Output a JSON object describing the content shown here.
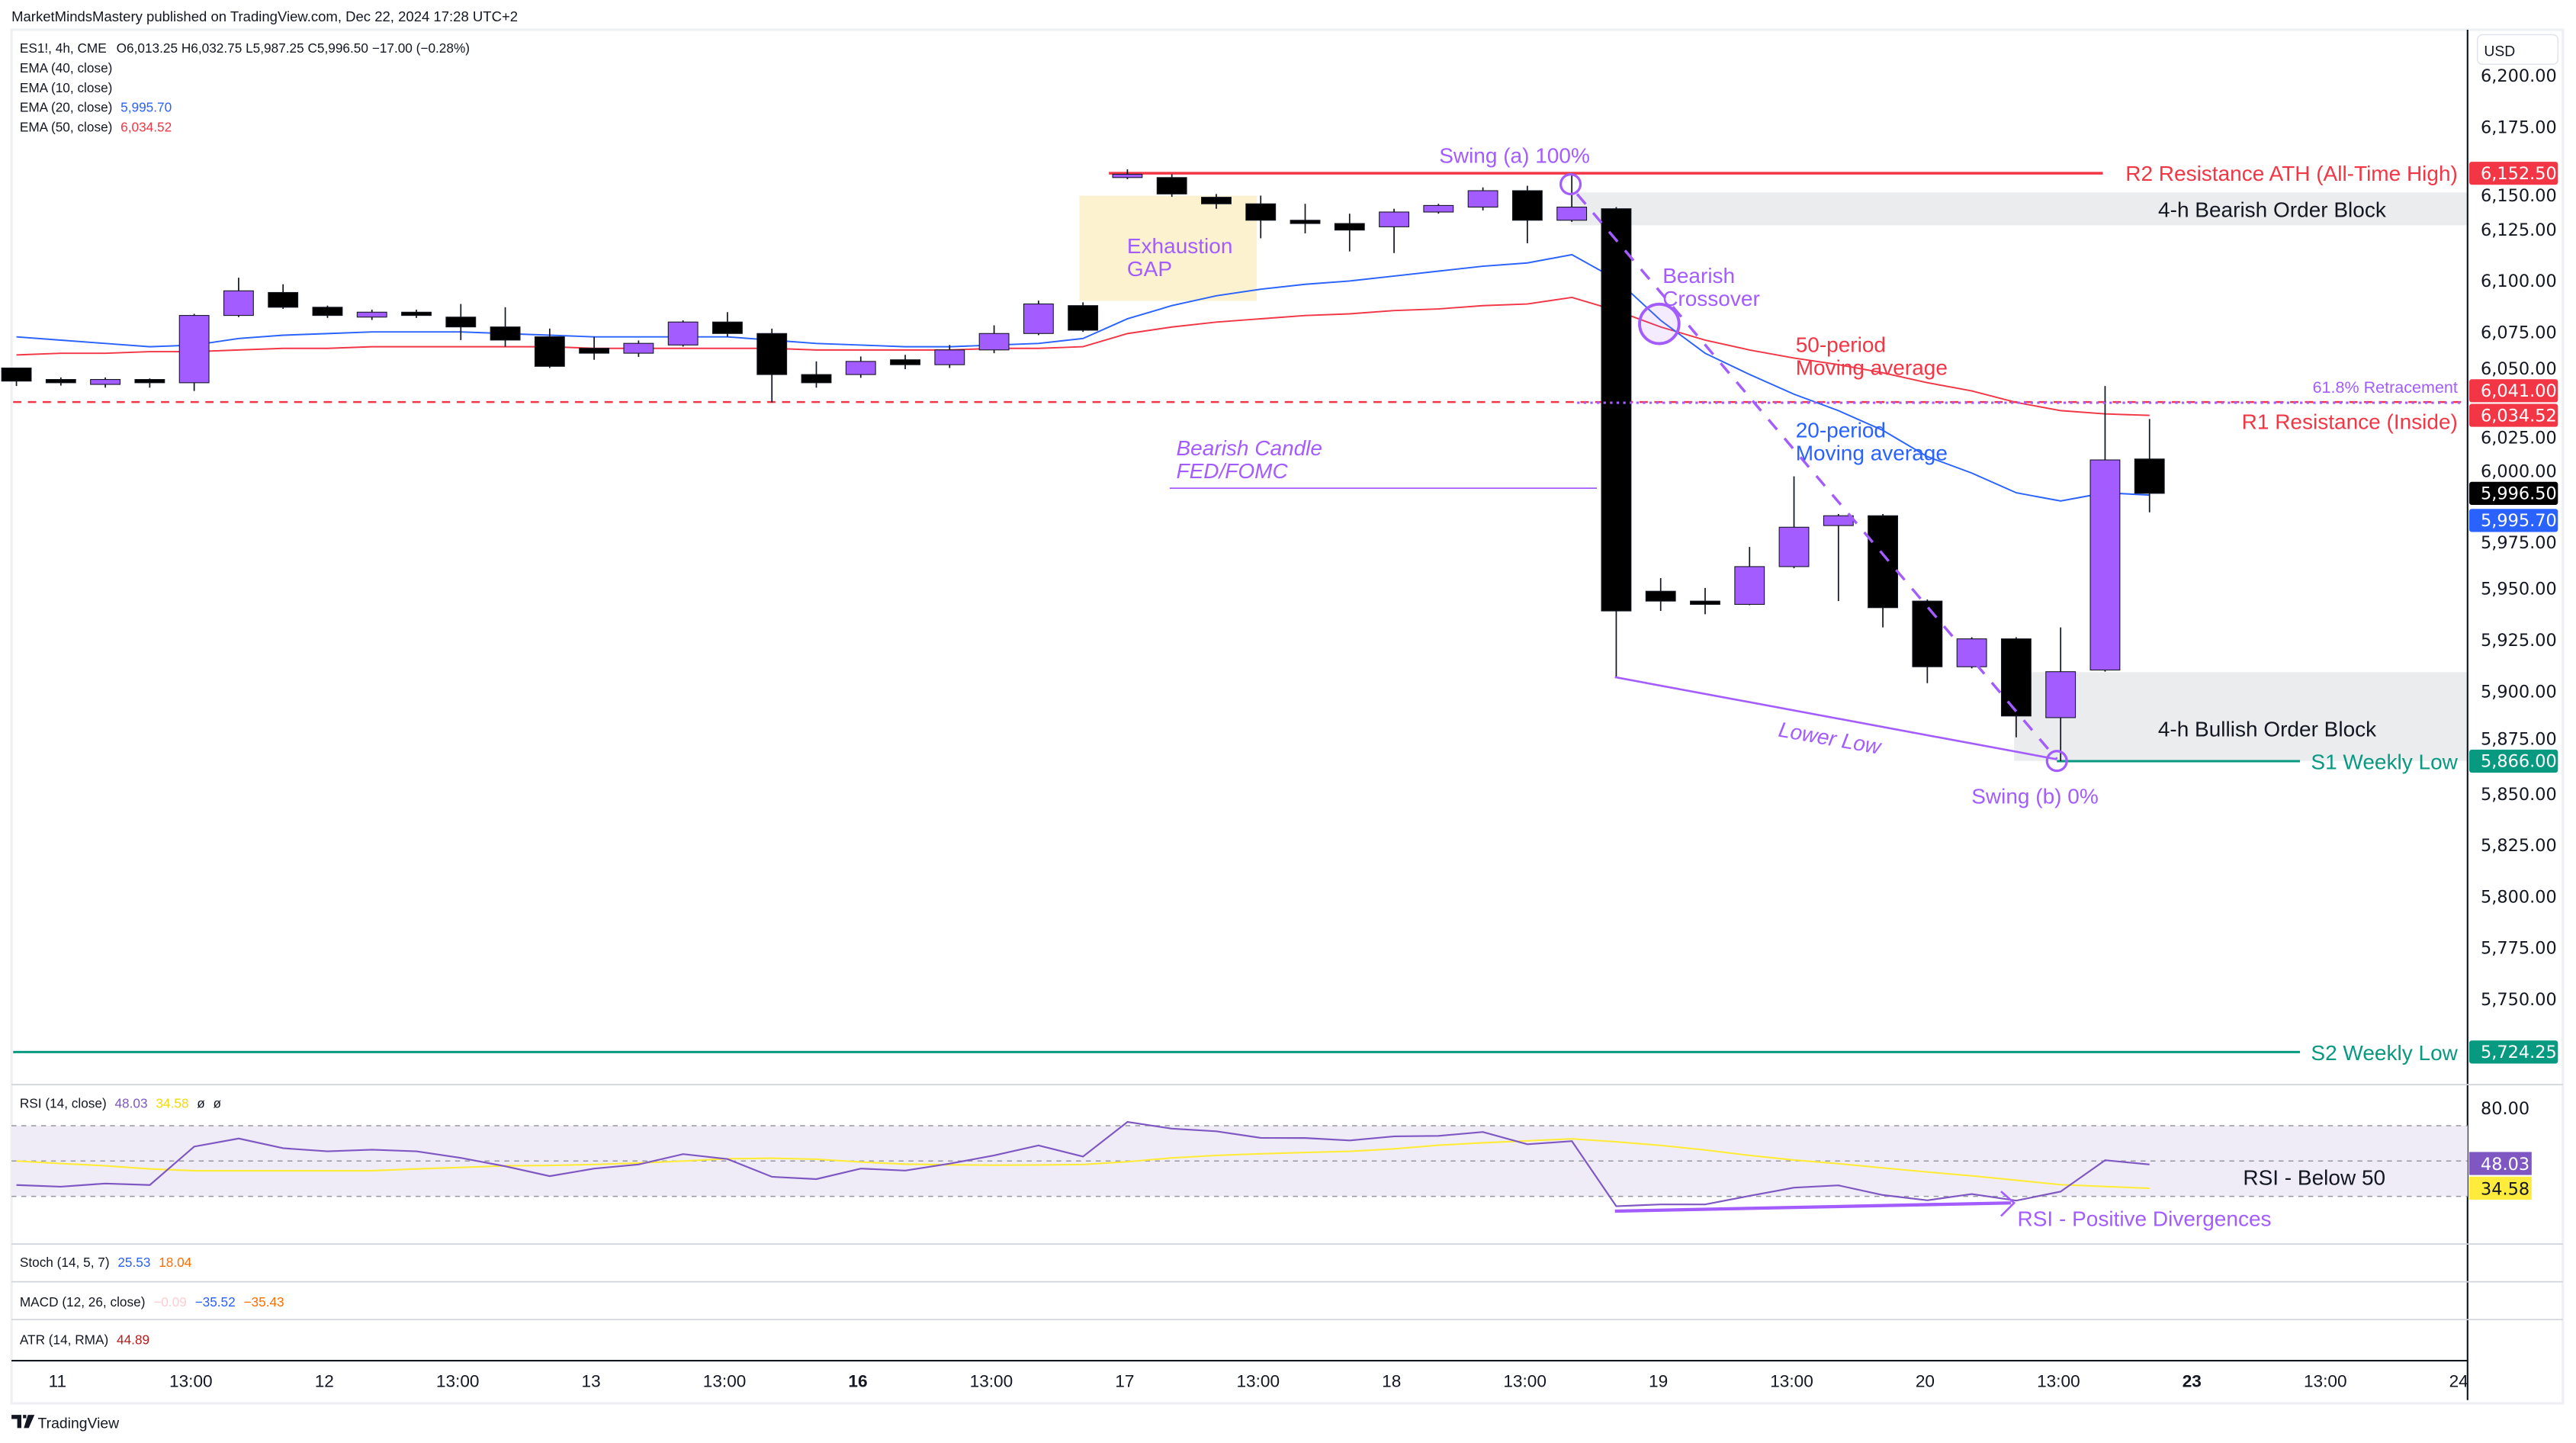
{
  "header": {
    "published": "MarketMindsMastery published on TradingView.com, Dec 22, 2024 17:28 UTC+2",
    "symbol": "ES1!, 4h, CME",
    "ohlc": "O6,013.25  H6,032.75  L5,987.25  C5,996.50  −17.00 (−0.28%)",
    "ema40": "EMA (40, close)",
    "ema10": "EMA (10, close)",
    "ema20": "EMA (20, close)",
    "ema20_value": "5,995.70",
    "ema50": "EMA (50, close)",
    "ema50_value": "6,034.52"
  },
  "colors": {
    "up": "#a35cff",
    "down": "#000000",
    "ema20": "#2962ff",
    "ema50": "#f23645",
    "rsi": "#7e57c2",
    "rsi_ma": "#ffeb3b",
    "support": "#089981",
    "annotation": "#a35cff"
  },
  "price_axis": {
    "currency": "USD",
    "ticks": [
      "6,200.00",
      "6,175.00",
      "6,150.00",
      "6,125.00",
      "6,100.00",
      "6,075.00",
      "6,050.00",
      "6,025.00",
      "6,000.00",
      "5,975.00",
      "5,950.00",
      "5,925.00",
      "5,900.00",
      "5,875.00",
      "5,850.00",
      "5,825.00",
      "5,800.00",
      "5,775.00",
      "5,750.00"
    ],
    "tick_values": [
      6200,
      6175,
      6150,
      6125,
      6100,
      6075,
      6050,
      6025,
      6000,
      5975,
      5950,
      5925,
      5900,
      5875,
      5850,
      5825,
      5800,
      5775,
      5750
    ],
    "badges": [
      {
        "label": "6,152.50",
        "value": 6152.5,
        "color": "#f23645"
      },
      {
        "label": "6,041.00",
        "value": 6046.5,
        "color": "#f23645"
      },
      {
        "label": "6,034.52",
        "value": 6034.52,
        "color": "#f23645"
      },
      {
        "label": "5,996.50",
        "value": 5996.5,
        "color": "#000000"
      },
      {
        "label": "5,995.70",
        "value": 5983.3,
        "color": "#2962ff"
      },
      {
        "label": "5,866.00",
        "value": 5866,
        "color": "#089981"
      },
      {
        "label": "5,724.25",
        "value": 5724.25,
        "color": "#089981"
      }
    ]
  },
  "annotations": {
    "swing_a": "Swing (a) 100%",
    "r2": "R2 Resistance ATH (All-Time High)",
    "bearish_ob": "4-h Bearish Order Block",
    "exhaustion_1": "Exhaustion",
    "exhaustion_2": "GAP",
    "bearish_crossover_1": "Bearish",
    "bearish_crossover_2": "Crossover",
    "ma50_1": "50-period",
    "ma50_2": "Moving average",
    "ma20_1": "20-period",
    "ma20_2": "Moving average",
    "retracement": "61.8% Retracement",
    "r1": "R1 Resistance (Inside)",
    "fomc_1": "Bearish Candle",
    "fomc_2": "FED/FOMC",
    "lower_low": "Lower Low",
    "bullish_ob": "4-h Bullish Order Block",
    "s1": "S1 Weekly Low",
    "swing_b": "Swing (b) 0%",
    "s2": "S2 Weekly Low",
    "rsi_below": "RSI - Below 50",
    "rsi_div": "RSI - Positive Divergences"
  },
  "levels": {
    "r2": 6152.5,
    "r1": 6041,
    "s1": 5866,
    "s2": 5724.25
  },
  "indicators": {
    "rsi_label": "RSI (14, close)",
    "rsi_value": "48.03",
    "rsi_ma_value": "34.58",
    "rsi_axis_tick": "80.00",
    "stoch_label": "Stoch (14, 5, 7)",
    "stoch_k": "25.53",
    "stoch_d": "18.04",
    "macd_label": "MACD (12, 26, close)",
    "macd_hist": "−0.09",
    "macd_line": "−35.52",
    "macd_signal": "−35.43",
    "atr_label": "ATR (14, RMA)",
    "atr_value": "44.89"
  },
  "time_axis": {
    "labels": [
      "11",
      "13:00",
      "12",
      "13:00",
      "13",
      "13:00",
      "16",
      "13:00",
      "17",
      "13:00",
      "18",
      "13:00",
      "19",
      "13:00",
      "20",
      "13:00",
      "23",
      "13:00",
      "24"
    ],
    "bold": [
      "16",
      "23"
    ]
  },
  "footer": {
    "brand": "TradingView"
  },
  "chart_data": {
    "type": "candlestick",
    "title": "ES1!, 4h, CME",
    "ylim": [
      5712,
      6212
    ],
    "candles": [
      [
        6057.6,
        6057.6,
        6048.8,
        6051.2
      ],
      [
        6052,
        6053,
        6049,
        6050.4
      ],
      [
        6049.6,
        6053,
        6048,
        6052
      ],
      [
        6052,
        6052.5,
        6048,
        6050.4
      ],
      [
        6050.4,
        6084,
        6046.4,
        6083.2
      ],
      [
        6083.2,
        6101.6,
        6082.4,
        6095.2
      ],
      [
        6094.4,
        6098.4,
        6086.4,
        6087.2
      ],
      [
        6087.2,
        6088,
        6082,
        6083.2
      ],
      [
        6082.4,
        6086,
        6081,
        6084.8
      ],
      [
        6084.8,
        6086,
        6082,
        6083.2
      ],
      [
        6082.4,
        6088.8,
        6071.2,
        6077.6
      ],
      [
        6077.6,
        6087.2,
        6068,
        6071.2
      ],
      [
        6072.8,
        6076.8,
        6057.6,
        6058.4
      ],
      [
        6067.2,
        6072.8,
        6061.6,
        6064.8
      ],
      [
        6064.8,
        6071,
        6063,
        6069.6
      ],
      [
        6068.8,
        6080.8,
        6068,
        6080
      ],
      [
        6080,
        6084.8,
        6072.8,
        6074.4
      ],
      [
        6074.4,
        6076.8,
        6040.8,
        6054.4
      ],
      [
        6054.4,
        6060.8,
        6048,
        6050.4
      ],
      [
        6054.4,
        6063.2,
        6052.8,
        6060.8
      ],
      [
        6061.6,
        6064,
        6057,
        6059.2
      ],
      [
        6059.2,
        6068.8,
        6057.6,
        6066.4
      ],
      [
        6066.4,
        6078.4,
        6064.8,
        6074.4
      ],
      [
        6074.4,
        6090.4,
        6073.6,
        6088.8
      ],
      [
        6088,
        6089.6,
        6075.2,
        6076
      ],
      [
        6150.4,
        6154.4,
        6149.6,
        6152
      ],
      [
        6150.4,
        6152,
        6141,
        6142.4
      ],
      [
        6140.8,
        6142.4,
        6135.2,
        6137.6
      ],
      [
        6137.6,
        6141.6,
        6120.8,
        6129.6
      ],
      [
        6129.6,
        6137.6,
        6123.2,
        6128
      ],
      [
        6128,
        6132.8,
        6114.4,
        6124.8
      ],
      [
        6126.4,
        6135.2,
        6113.6,
        6133.6
      ],
      [
        6133.6,
        6137.6,
        6132.8,
        6136.8
      ],
      [
        6136,
        6145.6,
        6134.4,
        6144
      ],
      [
        6144,
        6146.4,
        6118.4,
        6129.6
      ],
      [
        6129.6,
        6152.5,
        6128.8,
        6136
      ],
      [
        6135.2,
        6136,
        5907.2,
        5939.2
      ],
      [
        5948.8,
        5955.2,
        5939.2,
        5944
      ],
      [
        5944,
        5950.4,
        5937.6,
        5942.4
      ],
      [
        5942.4,
        5970.4,
        5942,
        5960.8
      ],
      [
        5960.8,
        6004.8,
        5960,
        5980
      ],
      [
        5980.8,
        5986.4,
        5944,
        5985.6
      ],
      [
        5985.6,
        5986.4,
        5931.2,
        5940.8
      ],
      [
        5944,
        5944.8,
        5904,
        5912
      ],
      [
        5912,
        5926.4,
        5911.2,
        5925.6
      ],
      [
        5925.6,
        5926.4,
        5877.6,
        5888
      ],
      [
        5887.2,
        5931.2,
        5866,
        5909.6
      ],
      [
        5910.4,
        6048.8,
        5909.6,
        6012.8
      ],
      [
        6013.25,
        6032.75,
        5987.25,
        5996.5
      ]
    ],
    "ema20": [
      6072.8,
      6071.2,
      6069.6,
      6068,
      6068.8,
      6072,
      6073.6,
      6074.4,
      6075.2,
      6075.2,
      6075.2,
      6074.4,
      6073.6,
      6072.8,
      6072.8,
      6072.8,
      6072.8,
      6071.2,
      6069.6,
      6068.8,
      6068,
      6068,
      6068.8,
      6069.6,
      6072,
      6081.6,
      6088,
      6092.8,
      6096,
      6098.4,
      6100,
      6102.4,
      6104.8,
      6107.2,
      6108.8,
      6112.8,
      6100.8,
      6080.8,
      6064.8,
      6054.4,
      6044.8,
      6036.8,
      6027.2,
      6014.4,
      6006.4,
      5996.8,
      5992.8,
      5996.8,
      5995.7
    ],
    "ema50": [
      6064,
      6064.8,
      6064.8,
      6065.6,
      6065.6,
      6066.4,
      6067.2,
      6067.2,
      6068,
      6068,
      6068,
      6068,
      6068,
      6067.2,
      6067.2,
      6067.2,
      6067.2,
      6067.2,
      6066.4,
      6066.4,
      6066.4,
      6066.4,
      6067.2,
      6067.2,
      6068,
      6074.4,
      6077.6,
      6080,
      6081.6,
      6083.2,
      6084,
      6085.6,
      6086.4,
      6088,
      6088.8,
      6092,
      6085.6,
      6077.6,
      6071.2,
      6066.4,
      6062.4,
      6059.2,
      6055.2,
      6050.4,
      6046.4,
      6040.8,
      6036.8,
      6035.2,
      6034.52
    ],
    "rsi": [
      36.4,
      35.5,
      37.3,
      36.4,
      58.2,
      62.7,
      57.3,
      55.5,
      56.4,
      55.5,
      51.8,
      47,
      41.4,
      45.7,
      48,
      53.9,
      51.1,
      41.1,
      39.8,
      45.7,
      44.6,
      48.5,
      53.2,
      58.8,
      52.5,
      72.1,
      68.3,
      66.8,
      63.1,
      63,
      61.6,
      64,
      64.2,
      66.5,
      59.5,
      61.3,
      24.4,
      25.4,
      25.4,
      30.3,
      34.9,
      36.2,
      30.7,
      27.8,
      31.3,
      27.6,
      32.7,
      50.5,
      48.03
    ],
    "rsi_ma": [
      50,
      48.6,
      47.3,
      45.5,
      44.5,
      44.5,
      44.5,
      44.5,
      44.5,
      45.5,
      46.4,
      47.3,
      47.5,
      48,
      48.9,
      50,
      51.3,
      51.6,
      51,
      49.4,
      48.2,
      47.9,
      47.7,
      47.8,
      48,
      49.6,
      51.8,
      53.2,
      54.1,
      54.8,
      55.5,
      56.9,
      58.9,
      60.3,
      61.4,
      62.6,
      60.9,
      58.8,
      56.2,
      53.2,
      50.6,
      48.5,
      46.1,
      43.8,
      41.6,
      39.1,
      36.6,
      35.6,
      34.58
    ],
    "rsi_levels": [
      70,
      50,
      30
    ],
    "rsi_ylim": [
      20,
      82
    ]
  }
}
